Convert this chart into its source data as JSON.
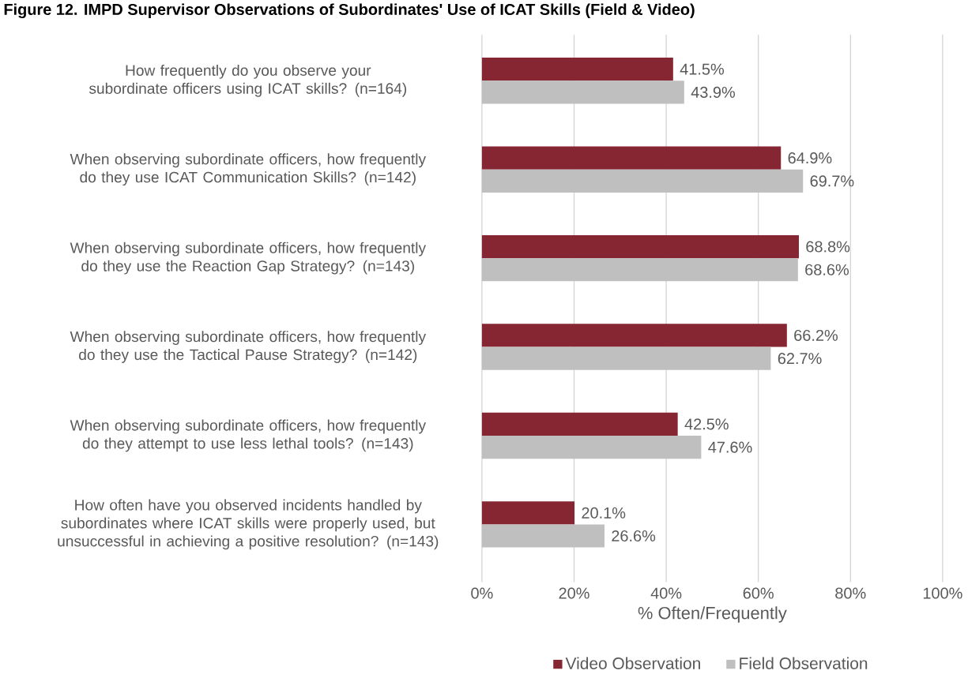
{
  "chart_data": {
    "type": "bar",
    "orientation": "horizontal",
    "title": "Figure 12. IMPD Supervisor Observations of Subordinates' Use of ICAT Skills (Field & Video)",
    "xlabel": "% Often/Frequently",
    "categories": [
      "How frequently do you observe your subordinate officers using ICAT skills? (n=164)",
      "When observing subordinate officers, how frequently do they use ICAT Communication Skills? (n=142)",
      "When observing subordinate officers, how frequently do they use the Reaction Gap Strategy? (n=143)",
      "When observing subordinate officers, how frequently do they use the Tactical Pause Strategy? (n=142)",
      "When observing subordinate officers, how frequently do they attempt to use less lethal tools? (n=143)",
      "How often have you observed incidents handled by subordinates where ICAT skills were properly used, but unsuccessful in achieving a positive resolution? (n=143)"
    ],
    "series": [
      {
        "name": "Video Observation",
        "color": "#862633",
        "values": [
          41.5,
          64.9,
          68.8,
          66.2,
          42.5,
          20.1
        ],
        "value_labels": [
          "41.5%",
          "64.9%",
          "68.8%",
          "66.2%",
          "42.5%",
          "20.1%"
        ]
      },
      {
        "name": "Field Observation",
        "color": "#bfbfbf",
        "values": [
          43.9,
          69.7,
          68.6,
          62.7,
          47.6,
          26.6
        ],
        "value_labels": [
          "43.9%",
          "69.7%",
          "68.6%",
          "62.7%",
          "47.6%",
          "26.6%"
        ]
      }
    ],
    "xlim": [
      0,
      100
    ],
    "xticks": [
      {
        "value": 0,
        "label": "0%"
      },
      {
        "value": 20,
        "label": "20%"
      },
      {
        "value": 40,
        "label": "40%"
      },
      {
        "value": 60,
        "label": "60%"
      },
      {
        "value": 80,
        "label": "80%"
      },
      {
        "value": 100,
        "label": "100%"
      }
    ],
    "grid": "x",
    "legend": "bottom"
  }
}
